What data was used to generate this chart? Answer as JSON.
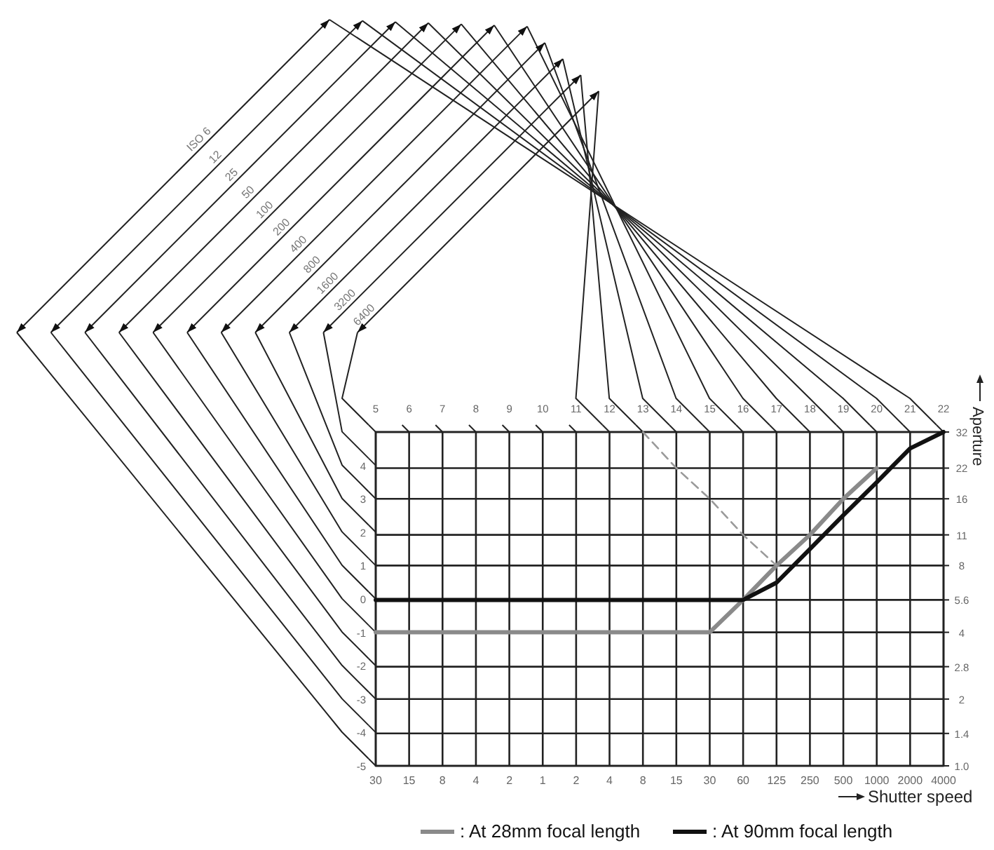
{
  "chart_data": {
    "type": "line",
    "xlabel": "Shutter speed",
    "y2label": "Aperture",
    "categories": [
      "30",
      "15",
      "8",
      "4",
      "2",
      "1",
      "2",
      "4",
      "8",
      "15",
      "30",
      "60",
      "125",
      "250",
      "500",
      "1000",
      "2000",
      "4000"
    ],
    "x2lim": [
      5,
      22
    ],
    "x2ticks": [
      5,
      6,
      7,
      8,
      9,
      10,
      11,
      12,
      13,
      14,
      15,
      16,
      17,
      18,
      19,
      20,
      21,
      22
    ],
    "ylim": [
      -5,
      5
    ],
    "yticks": [
      -5,
      -4,
      -3,
      -2,
      -1,
      0,
      1,
      2,
      3,
      4
    ],
    "y2lim": [
      1,
      32
    ],
    "y2ticks": [
      {
        "value": 1,
        "label": "1.0"
      },
      1.4,
      2,
      2.8,
      4,
      5.6,
      8,
      11,
      16,
      22,
      32
    ],
    "log": "y2",
    "grid": true,
    "legend": "bottom",
    "line_style": "solid",
    "annotations": [
      "ISO 6",
      "12",
      "25",
      "50",
      "100",
      "200",
      "400",
      "800",
      "1600",
      "3200",
      "6400"
    ],
    "series": [
      {
        "name": ": At 28mm focal length",
        "color": "#8a8a8a",
        "axis": "y2",
        "values": [
          4,
          4,
          4,
          4,
          4,
          4,
          4,
          4,
          4,
          4,
          4,
          5.6,
          8,
          11,
          16,
          22,
          null,
          null
        ]
      },
      {
        "name": ": At 90mm focal length",
        "color": "#111111",
        "axis": "y2",
        "values": [
          5.6,
          5.6,
          5.6,
          5.6,
          5.6,
          5.6,
          5.6,
          5.6,
          5.6,
          5.6,
          5.6,
          5.6,
          6.7,
          9.5,
          13.5,
          19,
          27,
          32
        ]
      },
      {
        "color": "#9a9a9a",
        "axis": "y2",
        "line_style": "dashed",
        "values": [
          null,
          null,
          null,
          null,
          null,
          null,
          null,
          null,
          32,
          22,
          16,
          11,
          8,
          null,
          null,
          null,
          null,
          null
        ]
      }
    ]
  }
}
